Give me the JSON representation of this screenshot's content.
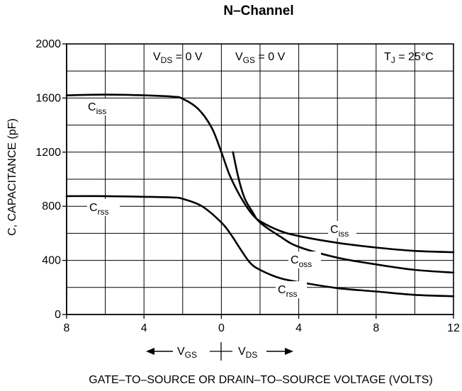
{
  "chart_data": {
    "type": "line",
    "title": "N–Channel",
    "ylabel": "C, CAPACITANCE (pF)",
    "xlabel": "GATE–TO–SOURCE OR DRAIN–TO–SOURCE VOLTAGE (VOLTS)",
    "x_direction": {
      "left_main": "V",
      "left_sub": "GS",
      "right_main": "V",
      "right_sub": "DS"
    },
    "region_labels": {
      "left": {
        "main": "V",
        "sub": "DS",
        "rest": " = 0 V"
      },
      "right": {
        "main": "V",
        "sub": "GS",
        "rest": " = 0 V"
      },
      "temp": {
        "main": "T",
        "sub": "J",
        "rest": " = 25°C"
      }
    },
    "x_ticks": [
      "8",
      "4",
      "0",
      "4",
      "8",
      "12"
    ],
    "y_ticks": [
      "0",
      "400",
      "800",
      "1200",
      "1600",
      "2000"
    ],
    "ylim": [
      0,
      2000
    ],
    "x_axis_note": "Left of 0: V_GS (8 to 0); right of 0: V_DS (0 to 12)",
    "series": [
      {
        "name": "Ciss",
        "label": {
          "main": "C",
          "sub": "iss"
        },
        "x": [
          -8,
          -6,
          -4,
          -2.5,
          -2,
          -1.2,
          -0.5,
          0,
          0.4,
          0.8,
          1.2,
          1.6,
          2,
          3,
          4,
          6,
          8,
          10,
          12
        ],
        "y": [
          1620,
          1625,
          1620,
          1610,
          1595,
          1520,
          1380,
          1200,
          1040,
          920,
          820,
          740,
          690,
          620,
          580,
          530,
          495,
          470,
          460
        ]
      },
      {
        "name": "Ciss (right label)",
        "label": {
          "main": "C",
          "sub": "iss"
        },
        "x": [],
        "y": []
      },
      {
        "name": "Coss",
        "label": {
          "main": "C",
          "sub": "oss"
        },
        "x": [
          0.6,
          0.9,
          1.2,
          1.6,
          2,
          3,
          4,
          6,
          8,
          10,
          12
        ],
        "y": [
          1200,
          1000,
          860,
          760,
          680,
          580,
          500,
          420,
          370,
          330,
          310
        ]
      },
      {
        "name": "Crss",
        "label": {
          "main": "C",
          "sub": "rss"
        },
        "x": [
          -8,
          -6,
          -4,
          -2.5,
          -2,
          -1,
          0,
          0.5,
          1,
          1.5,
          2,
          3,
          4,
          6,
          8,
          10,
          12
        ],
        "y": [
          875,
          875,
          870,
          865,
          855,
          800,
          680,
          590,
          480,
          380,
          330,
          270,
          240,
          195,
          170,
          145,
          135
        ]
      }
    ],
    "label_anchors": [
      "Ciss-left",
      "Crss-left",
      "Ciss-right",
      "Coss-right",
      "Crss-right"
    ]
  }
}
